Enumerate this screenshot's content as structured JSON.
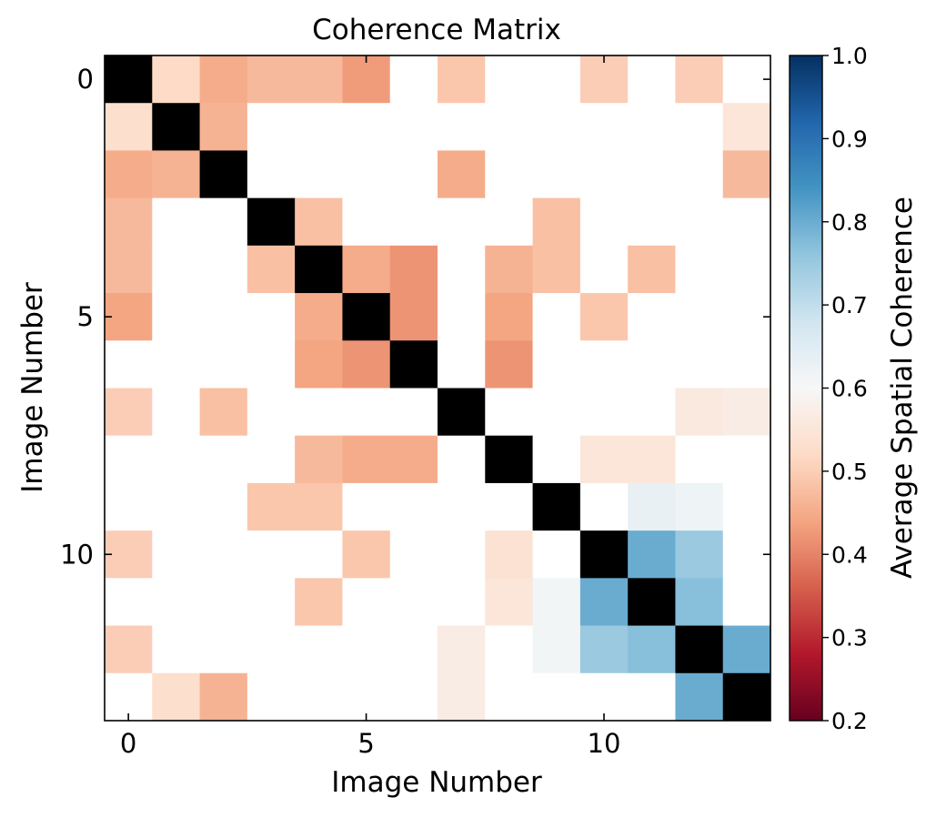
{
  "chart_data": {
    "type": "heatmap",
    "title": "Coherence Matrix",
    "xlabel": "Image Number",
    "ylabel": "Image Number",
    "x_ticks": [
      "0",
      "5",
      "10"
    ],
    "y_ticks": [
      "0",
      "5",
      "10"
    ],
    "rows": 14,
    "cols": 14,
    "diagonal_color": "#000000",
    "empty_color": "#ffffff",
    "colorbar": {
      "label": "Average Spatial Coherence",
      "range": [
        0.2,
        1.0
      ],
      "ticks": [
        "0.2",
        "0.3",
        "0.4",
        "0.5",
        "0.6",
        "0.7",
        "0.8",
        "0.9",
        "1.0"
      ],
      "colormap": "RdBu"
    },
    "values": [
      [
        null,
        0.52,
        0.45,
        0.47,
        0.47,
        0.43,
        null,
        0.49,
        null,
        null,
        0.5,
        null,
        0.5,
        null
      ],
      [
        0.53,
        null,
        0.46,
        null,
        null,
        null,
        null,
        null,
        null,
        null,
        null,
        null,
        null,
        0.55
      ],
      [
        0.45,
        0.46,
        null,
        null,
        null,
        null,
        null,
        0.45,
        null,
        null,
        null,
        null,
        null,
        0.47
      ],
      [
        0.47,
        null,
        null,
        null,
        0.48,
        null,
        null,
        null,
        null,
        0.48,
        null,
        null,
        null,
        null
      ],
      [
        0.47,
        null,
        null,
        0.48,
        null,
        0.45,
        0.42,
        null,
        0.46,
        0.48,
        null,
        0.48,
        null,
        null
      ],
      [
        0.44,
        null,
        null,
        null,
        0.45,
        null,
        0.42,
        null,
        0.44,
        null,
        0.49,
        null,
        null,
        null
      ],
      [
        null,
        null,
        null,
        null,
        0.44,
        0.42,
        null,
        null,
        0.42,
        null,
        null,
        null,
        null,
        null
      ],
      [
        0.5,
        null,
        0.48,
        null,
        null,
        null,
        null,
        null,
        null,
        null,
        null,
        null,
        0.56,
        0.57
      ],
      [
        null,
        null,
        null,
        null,
        0.47,
        0.45,
        0.45,
        null,
        null,
        null,
        0.55,
        0.55,
        null,
        null
      ],
      [
        null,
        null,
        null,
        0.49,
        0.49,
        null,
        null,
        null,
        null,
        null,
        null,
        0.63,
        0.62,
        null
      ],
      [
        0.5,
        null,
        null,
        null,
        null,
        0.49,
        null,
        null,
        0.54,
        null,
        null,
        0.8,
        0.75,
        null
      ],
      [
        null,
        null,
        null,
        null,
        0.49,
        null,
        null,
        null,
        0.55,
        0.61,
        0.8,
        null,
        0.77,
        null
      ],
      [
        0.5,
        null,
        null,
        null,
        null,
        null,
        null,
        0.57,
        null,
        0.61,
        0.75,
        0.77,
        null,
        0.8
      ],
      [
        null,
        0.53,
        0.46,
        null,
        null,
        null,
        null,
        0.57,
        null,
        null,
        null,
        null,
        0.8,
        null
      ]
    ]
  }
}
